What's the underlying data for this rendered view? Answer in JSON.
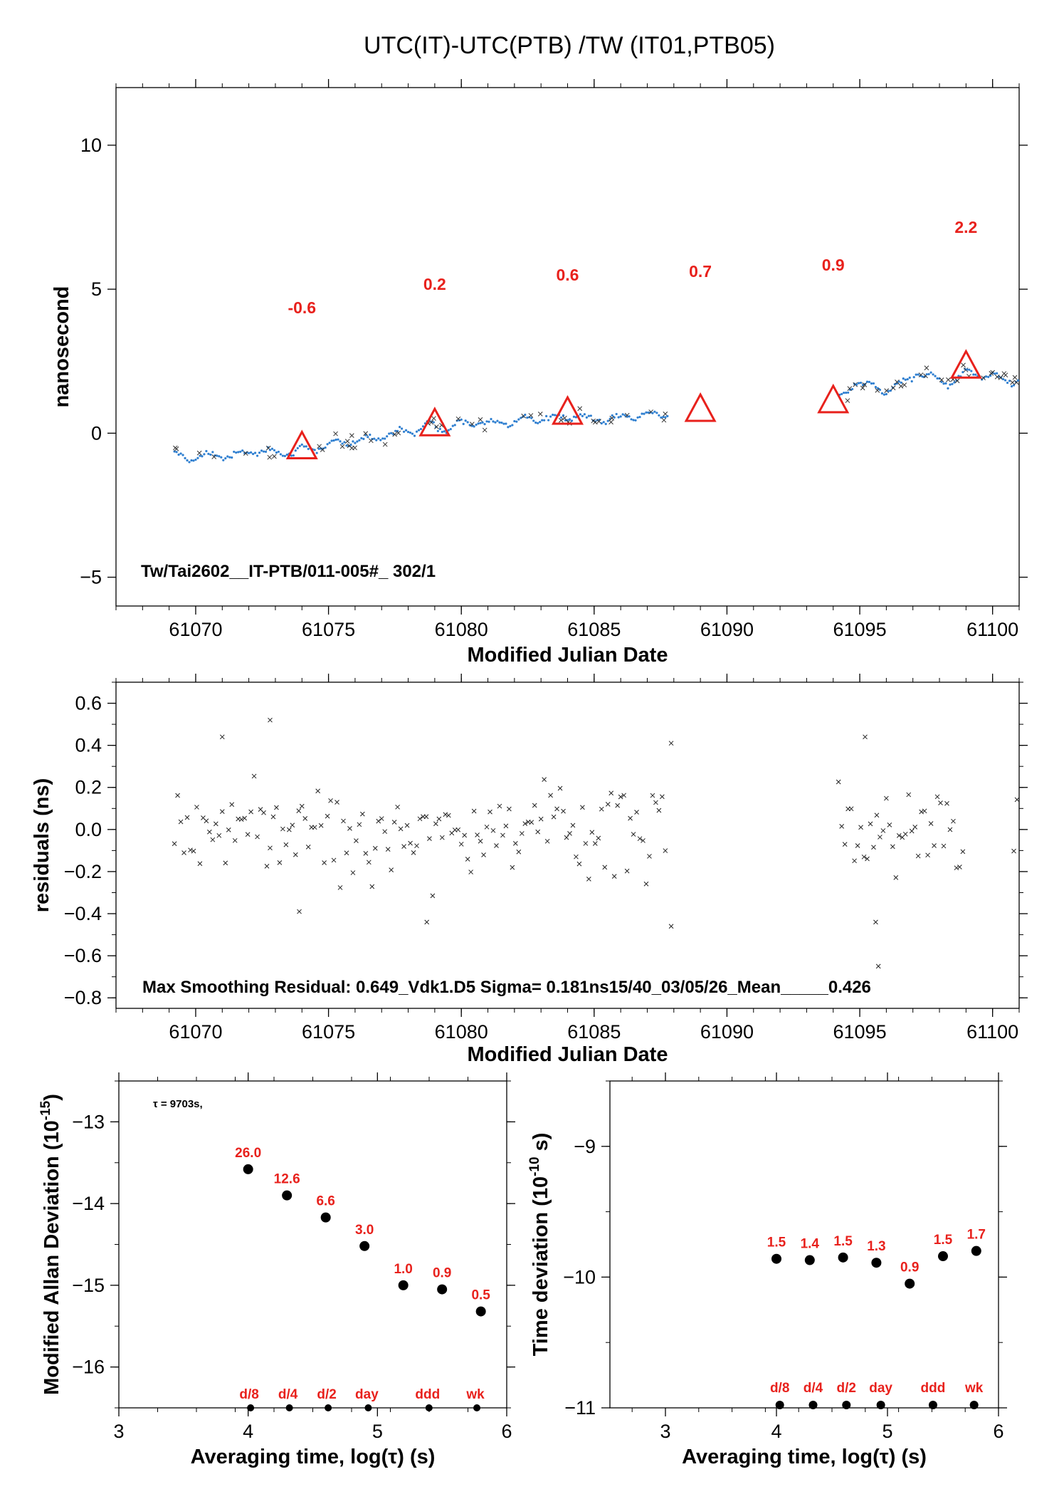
{
  "figure_title": "UTC(IT)-UTC(PTB)  /TW  (IT01,PTB05)",
  "colors": {
    "accent": "#e8211c",
    "series_blue": "#2f7fd0",
    "points": "#000000"
  },
  "chart_data": [
    {
      "id": "timeseries",
      "type": "scatter",
      "xlabel": "Modified Julian Date",
      "ylabel": "nanosecond",
      "xlim": [
        61067,
        61101
      ],
      "ylim": [
        -6,
        12
      ],
      "xticks": [
        61070,
        61075,
        61080,
        61085,
        61090,
        61095,
        61100
      ],
      "yticks": [
        -5,
        0,
        5,
        10
      ],
      "annotation": "Tw/Tai2602__IT-PTB/011-005#_  302/1",
      "markers": [
        {
          "x": 61074,
          "y": -0.5,
          "label": "-0.6"
        },
        {
          "x": 61079,
          "y": 0.3,
          "label": "0.2"
        },
        {
          "x": 61084,
          "y": 0.7,
          "label": "0.6"
        },
        {
          "x": 61089,
          "y": 0.8,
          "label": "0.7"
        },
        {
          "x": 61094,
          "y": 1.1,
          "label": "0.9"
        },
        {
          "x": 61099,
          "y": 2.3,
          "label": "2.2"
        }
      ],
      "series_points": [
        [
          61069.2,
          -0.8
        ],
        [
          61069.8,
          -0.85
        ],
        [
          61070.4,
          -0.8
        ],
        [
          61071.0,
          -0.75
        ],
        [
          61071.6,
          -0.8
        ],
        [
          61072.2,
          -0.6
        ],
        [
          61072.8,
          -0.65
        ],
        [
          61073.4,
          -0.7
        ],
        [
          61074.0,
          -0.55
        ],
        [
          61074.6,
          -0.5
        ],
        [
          61075.2,
          -0.4
        ],
        [
          61075.8,
          -0.3
        ],
        [
          61076.4,
          -0.2
        ],
        [
          61077.0,
          -0.1
        ],
        [
          61077.6,
          0.0
        ],
        [
          61078.2,
          0.1
        ],
        [
          61078.8,
          0.3
        ],
        [
          61079.4,
          0.15
        ],
        [
          61080.0,
          0.35
        ],
        [
          61080.6,
          0.4
        ],
        [
          61081.2,
          0.35
        ],
        [
          61081.8,
          0.4
        ],
        [
          61082.4,
          0.45
        ],
        [
          61083.0,
          0.5
        ],
        [
          61083.6,
          0.55
        ],
        [
          61084.2,
          0.6
        ],
        [
          61084.8,
          0.5
        ],
        [
          61085.4,
          0.45
        ],
        [
          61086.0,
          0.55
        ],
        [
          61086.6,
          0.6
        ],
        [
          61087.2,
          0.65
        ],
        [
          61087.8,
          0.7
        ],
        [
          61094.2,
          1.1
        ],
        [
          61094.8,
          1.8
        ],
        [
          61095.4,
          1.6
        ],
        [
          61096.0,
          1.5
        ],
        [
          61096.6,
          1.7
        ],
        [
          61097.2,
          2.1
        ],
        [
          61097.8,
          1.9
        ],
        [
          61098.4,
          1.7
        ],
        [
          61099.0,
          2.1
        ],
        [
          61100.8,
          1.8
        ]
      ]
    },
    {
      "id": "residuals",
      "type": "scatter",
      "xlabel": "Modified Julian Date",
      "ylabel": "residuals (ns)",
      "xlim": [
        61067,
        61101
      ],
      "ylim": [
        -0.85,
        0.7
      ],
      "xticks": [
        61070,
        61075,
        61080,
        61085,
        61090,
        61095,
        61100
      ],
      "yticks": [
        -0.8,
        -0.6,
        -0.4,
        -0.2,
        0.0,
        0.2,
        0.4,
        0.6
      ],
      "ytick_labels": [
        "−0.8",
        "−0.6",
        "−0.4",
        "−0.2",
        "0.0",
        "0.2",
        "0.4",
        "0.6"
      ],
      "annotation": "Max Smoothing Residual: 0.649_Vdk1.D5  Sigma= 0.181ns15/40_03/05/26_Mean_____0.426",
      "segments": [
        [
          61069.2,
          61087.8
        ],
        [
          61094.2,
          61099.0
        ],
        [
          61100.8,
          61101
        ]
      ],
      "sigma": 0.18,
      "outliers": [
        {
          "x": 61072.8,
          "y": 0.52
        },
        {
          "x": 61071.0,
          "y": 0.44
        },
        {
          "x": 61087.9,
          "y": 0.41
        },
        {
          "x": 61087.9,
          "y": -0.46
        },
        {
          "x": 61078.7,
          "y": -0.44
        },
        {
          "x": 61073.9,
          "y": -0.39
        },
        {
          "x": 61095.2,
          "y": 0.44
        },
        {
          "x": 61095.7,
          "y": -0.65
        },
        {
          "x": 61095.6,
          "y": -0.44
        }
      ]
    },
    {
      "id": "mdev",
      "type": "scatter",
      "xlabel": "Averaging time, log(τ) (s)",
      "ylabel": "Modified Allan Deviation (10",
      "ylabel_sup": "-15",
      "ylabel_end": ")",
      "xlim": [
        3,
        6
      ],
      "ylim": [
        -16.5,
        -12.5
      ],
      "xticks": [
        3,
        4,
        5,
        6
      ],
      "yticks": [
        -16,
        -15,
        -14,
        -13
      ],
      "ytick_labels": [
        "−16",
        "−15",
        "−14",
        "−13"
      ],
      "tau_note": "τ = 9703s,",
      "points": [
        {
          "x": 4.0,
          "y": -13.58,
          "label": "26.0"
        },
        {
          "x": 4.3,
          "y": -13.9,
          "label": "12.6"
        },
        {
          "x": 4.6,
          "y": -14.17,
          "label": "6.6"
        },
        {
          "x": 4.9,
          "y": -14.52,
          "label": "3.0"
        },
        {
          "x": 5.2,
          "y": -15.0,
          "label": "1.0"
        },
        {
          "x": 5.5,
          "y": -15.05,
          "label": "0.9"
        },
        {
          "x": 5.8,
          "y": -15.32,
          "label": "0.5"
        }
      ],
      "period_marks": [
        {
          "x": 4.03,
          "label": "d/8"
        },
        {
          "x": 4.33,
          "label": "d/4"
        },
        {
          "x": 4.63,
          "label": "d/2"
        },
        {
          "x": 4.94,
          "label": "day"
        },
        {
          "x": 5.41,
          "label": "ddd"
        },
        {
          "x": 5.78,
          "label": "wk"
        }
      ]
    },
    {
      "id": "tdev",
      "type": "scatter",
      "xlabel": "Averaging time, log(τ) (s)",
      "ylabel": "Time deviation (10",
      "ylabel_sup": "-10",
      "ylabel_end": " s)",
      "xlim": [
        2.5,
        6
      ],
      "ylim": [
        -11,
        -8.5
      ],
      "xticks": [
        3,
        4,
        5,
        6
      ],
      "yticks": [
        -11,
        -10,
        -9
      ],
      "ytick_labels": [
        "−11",
        "−10",
        "−9"
      ],
      "points": [
        {
          "x": 4.0,
          "y": -9.86,
          "label": "1.5"
        },
        {
          "x": 4.3,
          "y": -9.87,
          "label": "1.4"
        },
        {
          "x": 4.6,
          "y": -9.85,
          "label": "1.5"
        },
        {
          "x": 4.9,
          "y": -9.89,
          "label": "1.3"
        },
        {
          "x": 5.2,
          "y": -10.05,
          "label": "0.9"
        },
        {
          "x": 5.5,
          "y": -9.84,
          "label": "1.5"
        },
        {
          "x": 5.8,
          "y": -9.8,
          "label": "1.7"
        }
      ],
      "period_marks": [
        {
          "x": 4.03,
          "label": "d/8"
        },
        {
          "x": 4.33,
          "label": "d/4"
        },
        {
          "x": 4.63,
          "label": "d/2"
        },
        {
          "x": 4.94,
          "label": "day"
        },
        {
          "x": 5.41,
          "label": "ddd"
        },
        {
          "x": 5.78,
          "label": "wk"
        }
      ]
    }
  ]
}
